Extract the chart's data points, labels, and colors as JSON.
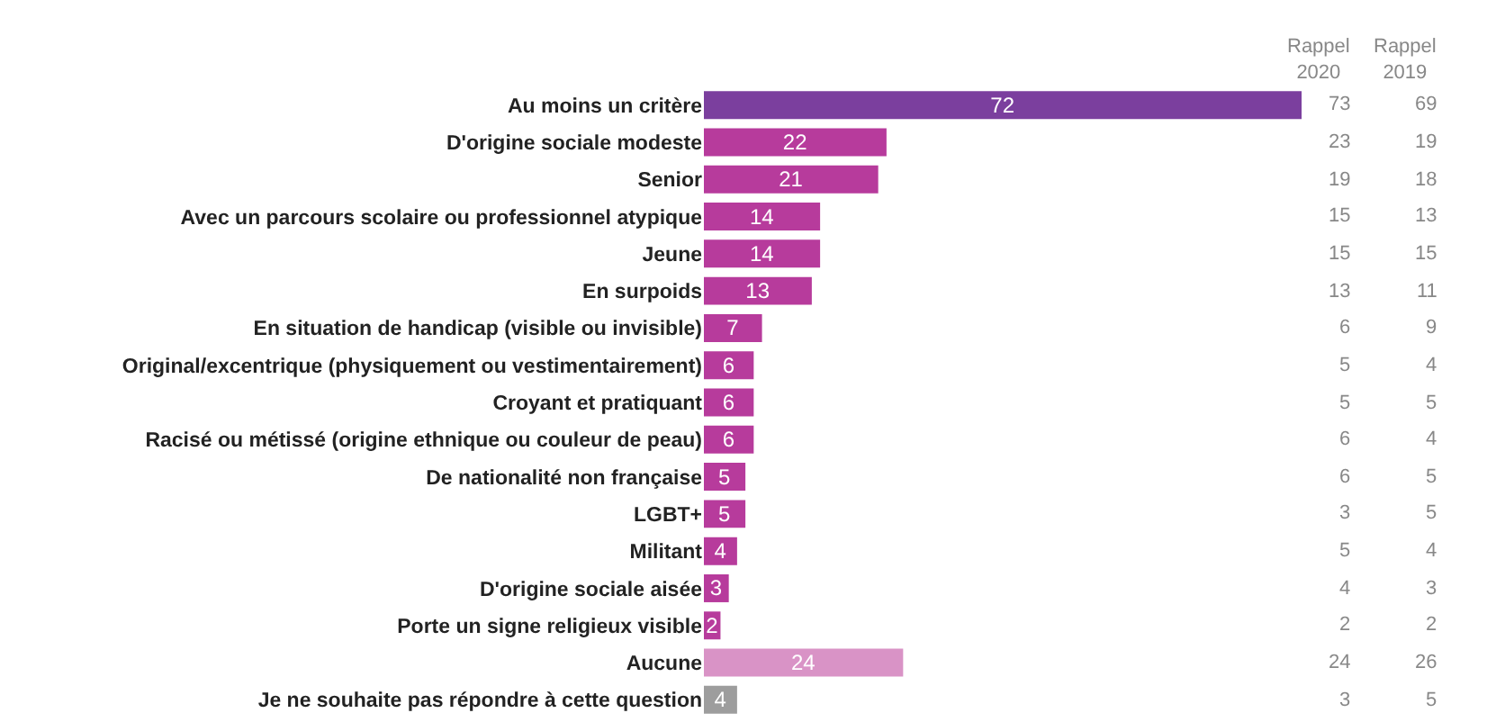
{
  "chart_data": {
    "type": "bar",
    "orientation": "horizontal",
    "data_labels": true,
    "legend": false,
    "categories": [
      "Au moins un critère",
      "D'origine sociale modeste",
      "Senior",
      "Avec un parcours scolaire ou professionnel atypique",
      "Jeune",
      "En surpoids",
      "En situation de handicap (visible ou invisible)",
      "Original/excentrique (physiquement ou vestimentairement)",
      "Croyant et pratiquant",
      "Racisé ou métissé (origine ethnique ou couleur de peau)",
      "De nationalité non française",
      "LGBT+",
      "Militant",
      "D'origine sociale aisée",
      "Porte un signe religieux visible",
      "Aucune",
      "Je ne souhaite pas répondre à cette question"
    ],
    "xlim": [
      0,
      72
    ],
    "values": [
      72,
      22,
      21,
      14,
      14,
      13,
      7,
      6,
      6,
      6,
      5,
      5,
      4,
      3,
      2,
      24,
      4
    ],
    "colors": [
      "#7b3f9e",
      "#b73b9c",
      "#b73b9c",
      "#b73b9c",
      "#b73b9c",
      "#b73b9c",
      "#b73b9c",
      "#b73b9c",
      "#b73b9c",
      "#b73b9c",
      "#b73b9c",
      "#b73b9c",
      "#b73b9c",
      "#b73b9c",
      "#b73b9c",
      "#d993c6",
      "#9d9d9d"
    ],
    "annotations": [
      "Rappel\n2020",
      "Rappel\n2019",
      "73",
      "69",
      "23",
      "19",
      "19",
      "18",
      "15",
      "13",
      "15",
      "15",
      "13",
      "11",
      "6",
      "9",
      "5",
      "4",
      "5",
      "5",
      "6",
      "4",
      "6",
      "5",
      "3",
      "5",
      "5",
      "4",
      "4",
      "3",
      "2",
      "2",
      "24",
      "26",
      "3",
      "5"
    ]
  }
}
